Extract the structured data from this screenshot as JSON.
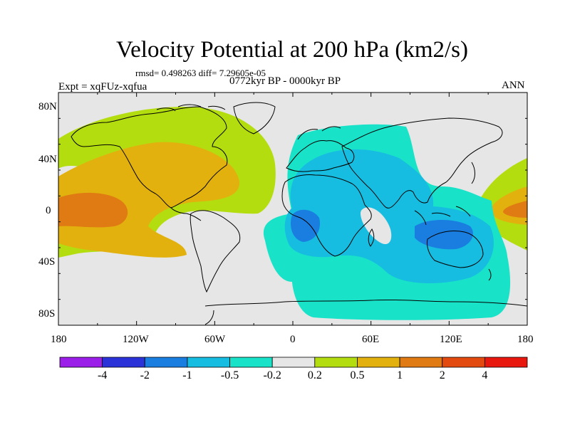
{
  "figure": {
    "title": "Velocity Potential at 200 hPa (km2/s)",
    "stats": "rmsd= 0.498263 diff= 7.29605e-05",
    "period": "0772kyr BP - 0000kyr BP",
    "experiment": "Expt = xqFUz-xqfua",
    "season": "ANN"
  },
  "axes": {
    "y_ticks": [
      "80N",
      "40N",
      "0",
      "40S",
      "80S"
    ],
    "x_ticks": [
      "180",
      "120W",
      "60W",
      "0",
      "60E",
      "120E",
      "180"
    ]
  },
  "colorbar": {
    "labels": [
      "-4",
      "-2",
      "-1",
      "-0.5",
      "-0.2",
      "0.2",
      "0.5",
      "1",
      "2",
      "4"
    ],
    "colors": [
      "#9b1fe8",
      "#2a32d8",
      "#1a7ee0",
      "#17bde0",
      "#18e2c8",
      "#e6e6e6",
      "#b4dd10",
      "#e2b10e",
      "#e07a12",
      "#e34a10",
      "#e8180e"
    ]
  },
  "field_colors": {
    "background": "#e6e6e6",
    "neg_weak": "#18e2c8",
    "neg_mid": "#17bde0",
    "neg_strong": "#1a7ee0",
    "pos_weak": "#b4dd10",
    "pos_mid": "#e2b10e",
    "pos_strong": "#e07a12"
  }
}
